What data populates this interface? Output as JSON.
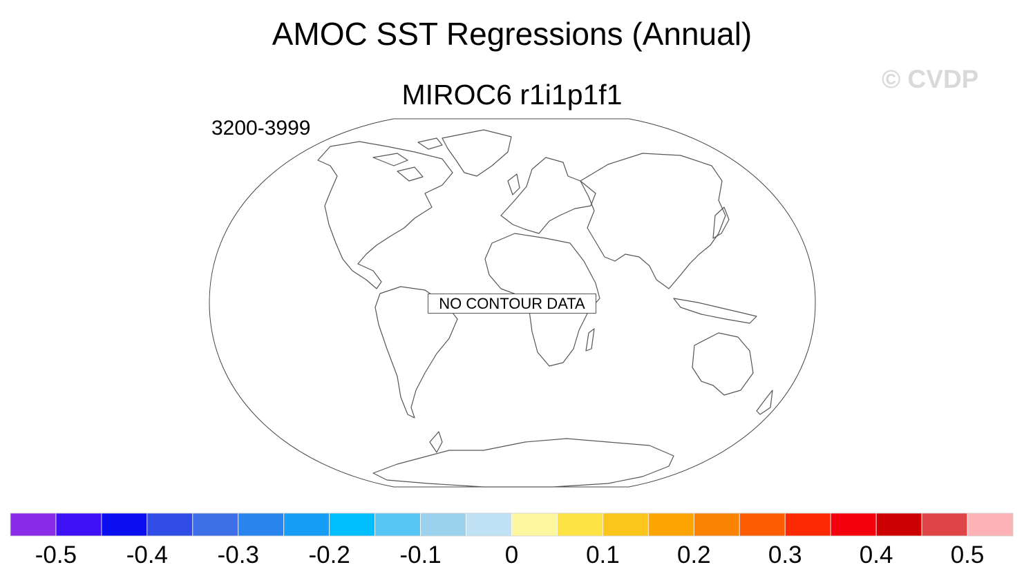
{
  "title": "AMOC SST Regressions (Annual)",
  "subtitle": "MIROC6 r1i1p1f1",
  "period": "3200-3999",
  "watermark": "© CVDP",
  "no_data_message": "NO CONTOUR DATA",
  "chart_data": {
    "type": "map",
    "projection": "Robinson",
    "variable": "SST regression on AMOC",
    "contour_data": null,
    "colorbar": {
      "levels": [
        -0.5,
        -0.45,
        -0.4,
        -0.35,
        -0.3,
        -0.25,
        -0.2,
        -0.15,
        -0.1,
        -0.05,
        0,
        0.05,
        0.1,
        0.15,
        0.2,
        0.25,
        0.3,
        0.35,
        0.4,
        0.45,
        0.5
      ],
      "tick_labels": [
        "-0.5",
        "-0.4",
        "-0.3",
        "-0.2",
        "-0.1",
        "0",
        "0.1",
        "0.2",
        "0.3",
        "0.4",
        "0.5"
      ],
      "colors": [
        "#8a2be8",
        "#3d10f5",
        "#0b0ef0",
        "#2f4ce6",
        "#3d6fe6",
        "#2a84f0",
        "#169ef5",
        "#00bfff",
        "#56c6f5",
        "#9dd2ef",
        "#bfe2f5",
        "#fdf7a0",
        "#fde344",
        "#fbc51c",
        "#fca502",
        "#fb8405",
        "#fd5d02",
        "#fe2a03",
        "#f5000d",
        "#cc0000",
        "#df4446",
        "#fdb2b5"
      ]
    }
  }
}
